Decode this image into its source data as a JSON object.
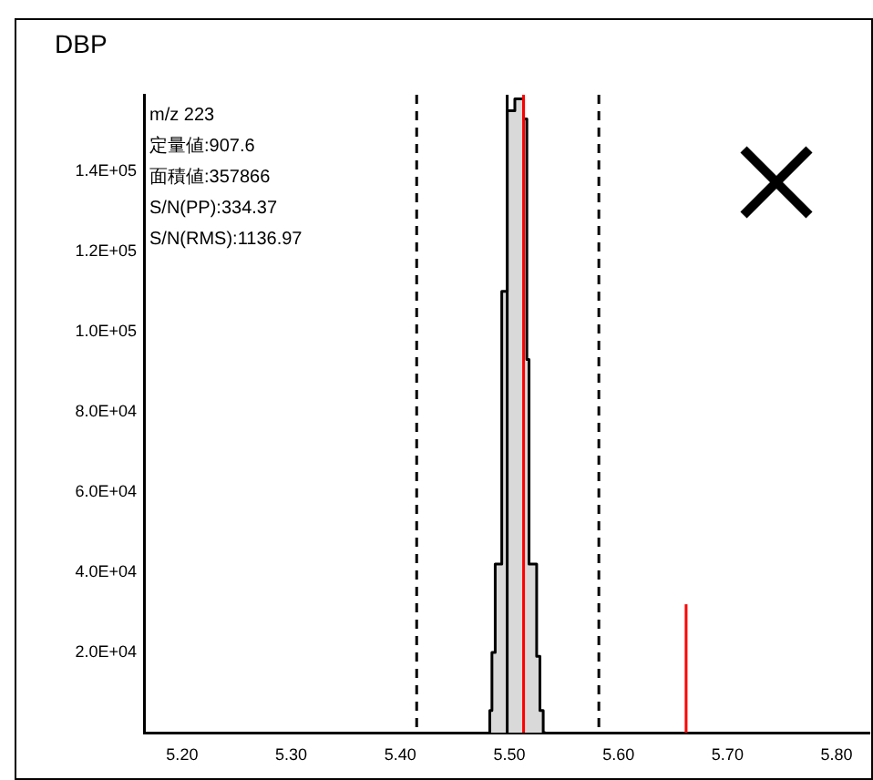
{
  "chart_data": {
    "type": "step",
    "title": "DBP",
    "annotations": [
      "m/z 223",
      "定量値:907.6",
      "面積値:357866",
      "S/N(PP):334.37",
      "S/N(RMS):1136.97"
    ],
    "series": [
      {
        "color": "#000000",
        "x": [
          5.482,
          5.484,
          5.487,
          5.493,
          5.498,
          5.505,
          5.513,
          5.516,
          5.518,
          5.525,
          5.528,
          5.531,
          5.533
        ],
        "values": [
          0,
          5500,
          20000,
          42000,
          110000,
          155000,
          158000,
          153000,
          93000,
          42000,
          19000,
          5500,
          0
        ]
      },
      {
        "type": "line",
        "color": "#ff0000",
        "x": [
          5.662,
          5.662
        ],
        "values": [
          0,
          32000
        ]
      }
    ],
    "ref_lines": [
      {
        "axis": "x",
        "value": 5.415,
        "color": "#000000",
        "line_style": "dashed"
      },
      {
        "axis": "x",
        "value": 5.582,
        "color": "#000000",
        "line_style": "dashed"
      },
      {
        "axis": "x",
        "value": 5.498,
        "color": "#000000",
        "line_style": "solid"
      },
      {
        "axis": "x",
        "value": 5.513,
        "color": "#ff0000",
        "line_style": "solid"
      }
    ],
    "xlim": [
      5.165,
      5.83
    ],
    "xticks": [
      {
        "value": 5.2,
        "label": "5.20"
      },
      {
        "value": 5.3,
        "label": "5.30"
      },
      {
        "value": 5.4,
        "label": "5.40"
      },
      {
        "value": 5.5,
        "label": "5.50"
      },
      {
        "value": 5.6,
        "label": "5.60"
      },
      {
        "value": 5.7,
        "label": "5.70"
      },
      {
        "value": 5.8,
        "label": "5.80"
      }
    ],
    "ylim": [
      0,
      159000
    ],
    "yticks": [
      {
        "value": 20000,
        "label": "2.0E+04"
      },
      {
        "value": 40000,
        "label": "4.0E+04"
      },
      {
        "value": 60000,
        "label": "6.0E+04"
      },
      {
        "value": 80000,
        "label": "8.0E+04"
      },
      {
        "value": 100000,
        "label": "1.0E+05"
      },
      {
        "value": 120000,
        "label": "1.2E+05"
      },
      {
        "value": 140000,
        "label": "1.4E+05"
      }
    ],
    "grid": false,
    "legend": false,
    "marker": "none"
  }
}
